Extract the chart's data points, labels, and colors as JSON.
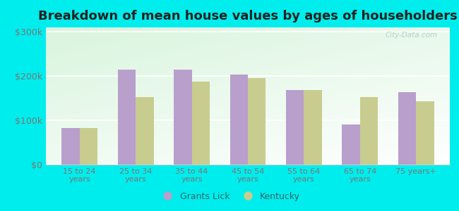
{
  "title": "Breakdown of mean house values by ages of householders",
  "categories": [
    "15 to 24\nyears",
    "25 to 34\nyears",
    "35 to 44\nyears",
    "45 to 54\nyears",
    "55 to 64\nyears",
    "65 to 74\nyears",
    "75 years+"
  ],
  "grants_lick": [
    82000,
    215000,
    215000,
    203000,
    168000,
    90000,
    163000
  ],
  "kentucky": [
    82000,
    152000,
    188000,
    195000,
    168000,
    153000,
    143000
  ],
  "grants_lick_color": "#b89fcc",
  "kentucky_color": "#c8cc8f",
  "background_color": "#00eded",
  "ylabel_ticks": [
    "$0",
    "$100k",
    "$200k",
    "$300k"
  ],
  "ytick_values": [
    0,
    100000,
    200000,
    300000
  ],
  "ylim": [
    0,
    310000
  ],
  "title_fontsize": 13,
  "legend_labels": [
    "Grants Lick",
    "Kentucky"
  ],
  "watermark": "City-Data.com",
  "bar_width": 0.32,
  "grid_color": "#ffffff",
  "tick_color": "#777777",
  "spine_color": "#cccccc"
}
